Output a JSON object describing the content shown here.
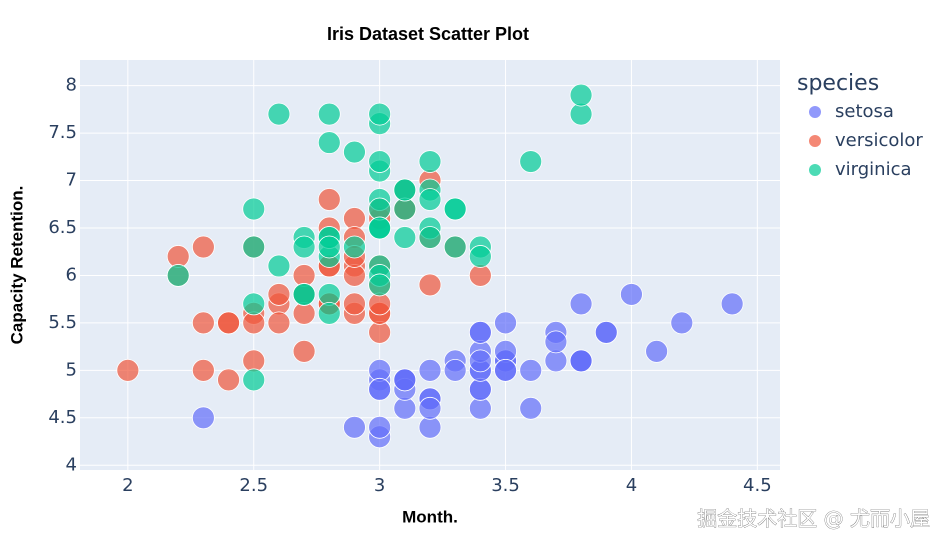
{
  "chart_data": {
    "type": "scatter",
    "title": "Iris Dataset Scatter Plot",
    "x_label": "Month.",
    "y_label": "Capacity Retention.",
    "legend_title": "species",
    "legend_position": "right",
    "grid": true,
    "watermark": "掘金技术社区 @ 尤而小屋",
    "xlim": [
      1.81,
      4.59
    ],
    "ylim": [
      3.95,
      8.27
    ],
    "xticks": [
      2,
      2.5,
      3,
      3.5,
      4,
      4.5
    ],
    "yticks": [
      4,
      4.5,
      5,
      5.5,
      6,
      6.5,
      7,
      7.5,
      8
    ],
    "series": [
      {
        "name": "setosa",
        "color": "#636efa",
        "x": [
          3.5,
          3.0,
          3.2,
          3.1,
          3.6,
          3.9,
          3.4,
          3.4,
          2.9,
          3.1,
          3.7,
          3.4,
          3.0,
          3.0,
          4.0,
          4.4,
          3.9,
          3.5,
          3.8,
          3.8,
          3.4,
          3.7,
          3.6,
          3.3,
          3.4,
          3.0,
          3.4,
          3.5,
          3.4,
          3.2,
          3.1,
          3.4,
          4.1,
          4.2,
          3.1,
          3.2,
          3.5,
          3.1,
          3.0,
          3.4,
          3.5,
          2.3,
          3.2,
          3.5,
          3.8,
          3.0,
          3.8,
          3.2,
          3.7,
          3.3
        ],
        "y": [
          5.1,
          4.9,
          4.7,
          4.6,
          5.0,
          5.4,
          4.6,
          5.0,
          4.4,
          4.9,
          5.4,
          4.8,
          4.8,
          4.3,
          5.8,
          5.7,
          5.4,
          5.1,
          5.7,
          5.1,
          5.4,
          5.1,
          4.6,
          5.1,
          4.8,
          5.0,
          5.0,
          5.2,
          5.2,
          4.7,
          4.8,
          5.4,
          5.2,
          5.5,
          4.9,
          5.0,
          5.5,
          4.9,
          4.4,
          5.1,
          5.0,
          4.5,
          4.4,
          5.0,
          5.1,
          4.8,
          5.1,
          4.6,
          5.3,
          5.0
        ]
      },
      {
        "name": "versicolor",
        "color": "#EF553B",
        "x": [
          3.2,
          3.2,
          3.1,
          2.3,
          2.8,
          2.8,
          3.3,
          2.4,
          2.9,
          2.7,
          2.0,
          3.0,
          2.2,
          2.9,
          2.9,
          3.1,
          3.0,
          2.7,
          2.2,
          2.5,
          3.2,
          2.8,
          2.5,
          2.8,
          2.9,
          3.0,
          2.8,
          3.0,
          2.9,
          2.6,
          2.4,
          2.4,
          2.7,
          2.7,
          3.0,
          3.4,
          3.1,
          2.3,
          3.0,
          2.5,
          2.6,
          3.0,
          2.6,
          2.3,
          2.7,
          3.0,
          2.9,
          2.9,
          2.5,
          2.8
        ],
        "y": [
          7.0,
          6.4,
          6.9,
          5.5,
          6.5,
          5.7,
          6.3,
          4.9,
          6.6,
          5.2,
          5.0,
          5.9,
          6.0,
          6.1,
          5.6,
          6.7,
          5.6,
          5.8,
          6.2,
          5.6,
          5.9,
          6.1,
          6.3,
          6.1,
          6.4,
          6.6,
          6.8,
          6.7,
          6.0,
          5.7,
          5.5,
          5.5,
          5.8,
          6.0,
          5.4,
          6.0,
          6.7,
          6.3,
          5.6,
          5.5,
          5.5,
          6.1,
          5.8,
          5.0,
          5.6,
          5.7,
          5.7,
          6.2,
          5.1,
          5.7
        ]
      },
      {
        "name": "virginica",
        "color": "#00cc96",
        "x": [
          3.3,
          2.7,
          3.0,
          2.9,
          3.0,
          3.0,
          2.5,
          2.9,
          2.5,
          3.6,
          3.2,
          2.7,
          3.0,
          2.5,
          2.8,
          3.2,
          3.0,
          3.8,
          2.6,
          2.2,
          3.2,
          2.8,
          2.8,
          2.7,
          3.3,
          3.2,
          2.8,
          3.0,
          2.8,
          3.0,
          2.8,
          3.8,
          2.8,
          2.8,
          2.6,
          3.0,
          3.4,
          3.1,
          3.0,
          3.1,
          3.1,
          3.1,
          2.7,
          3.2,
          3.3,
          3.0,
          2.5,
          3.0,
          3.4,
          3.0
        ],
        "y": [
          6.3,
          5.8,
          7.1,
          6.3,
          6.5,
          7.6,
          4.9,
          7.3,
          6.7,
          7.2,
          6.5,
          6.4,
          6.8,
          5.7,
          5.8,
          6.4,
          6.5,
          7.7,
          7.7,
          6.0,
          6.9,
          5.6,
          7.7,
          6.3,
          6.7,
          7.2,
          6.2,
          6.1,
          6.4,
          7.2,
          7.4,
          7.9,
          6.4,
          6.3,
          6.1,
          7.7,
          6.3,
          6.4,
          6.0,
          6.9,
          6.7,
          6.9,
          5.8,
          6.8,
          6.7,
          6.7,
          6.3,
          6.5,
          6.2,
          5.9
        ]
      }
    ]
  }
}
